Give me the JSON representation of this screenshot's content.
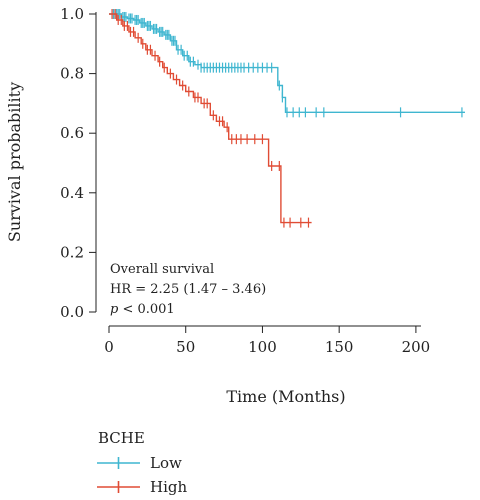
{
  "chart_data": {
    "type": "line",
    "subtype": "kaplan-meier",
    "ylabel": "Survival probability",
    "xlabel": "Time (Months)",
    "xlim": [
      0,
      232
    ],
    "ylim": [
      0.0,
      1.0
    ],
    "x_ticks": [
      0,
      50,
      100,
      150,
      200
    ],
    "y_ticks": [
      0.0,
      0.2,
      0.4,
      0.6,
      0.8,
      1.0
    ],
    "x_tick_labels": [
      "0",
      "50",
      "100",
      "150",
      "200"
    ],
    "y_tick_labels": [
      "0.0",
      "0.2",
      "0.4",
      "0.6",
      "0.8",
      "1.0"
    ],
    "grid": false,
    "annotation": {
      "line1": "Overall survival",
      "line2": "HR = 2.25 (1.47 – 3.46)",
      "p_symbol": "p",
      "p_rest": " < 0.001"
    },
    "legend": {
      "title": "BCHE",
      "position": "bottom-left"
    },
    "series": [
      {
        "name": "Low",
        "color": "#3fb6d0",
        "steps": [
          [
            0,
            1.0
          ],
          [
            8,
            0.99
          ],
          [
            12,
            0.985
          ],
          [
            16,
            0.98
          ],
          [
            20,
            0.97
          ],
          [
            24,
            0.96
          ],
          [
            28,
            0.95
          ],
          [
            32,
            0.94
          ],
          [
            36,
            0.93
          ],
          [
            40,
            0.91
          ],
          [
            44,
            0.88
          ],
          [
            48,
            0.86
          ],
          [
            52,
            0.84
          ],
          [
            56,
            0.83
          ],
          [
            60,
            0.82
          ],
          [
            110,
            0.76
          ],
          [
            113,
            0.72
          ],
          [
            115,
            0.67
          ],
          [
            232,
            0.67
          ]
        ],
        "censor_x": [
          2,
          3,
          4,
          5,
          6,
          7,
          9,
          10,
          11,
          13,
          14,
          15,
          17,
          18,
          19,
          21,
          22,
          23,
          25,
          26,
          27,
          29,
          30,
          31,
          33,
          34,
          35,
          37,
          38,
          39,
          41,
          42,
          43,
          45,
          47,
          49,
          51,
          53,
          55,
          58,
          60,
          62,
          64,
          66,
          68,
          70,
          72,
          74,
          76,
          78,
          80,
          82,
          84,
          86,
          88,
          91,
          94,
          97,
          100,
          103,
          106,
          111,
          113,
          116,
          120,
          124,
          128,
          135,
          140,
          190,
          230
        ]
      },
      {
        "name": "High",
        "color": "#e04c35",
        "steps": [
          [
            0,
            1.0
          ],
          [
            5,
            0.98
          ],
          [
            9,
            0.96
          ],
          [
            13,
            0.94
          ],
          [
            17,
            0.92
          ],
          [
            21,
            0.9
          ],
          [
            24,
            0.88
          ],
          [
            28,
            0.86
          ],
          [
            32,
            0.84
          ],
          [
            35,
            0.82
          ],
          [
            38,
            0.8
          ],
          [
            42,
            0.78
          ],
          [
            46,
            0.76
          ],
          [
            50,
            0.74
          ],
          [
            55,
            0.72
          ],
          [
            60,
            0.7
          ],
          [
            66,
            0.66
          ],
          [
            70,
            0.64
          ],
          [
            75,
            0.62
          ],
          [
            78,
            0.58
          ],
          [
            104,
            0.49
          ],
          [
            112,
            0.3
          ],
          [
            132,
            0.3
          ]
        ],
        "censor_x": [
          2,
          4,
          6,
          8,
          10,
          12,
          14,
          16,
          19,
          22,
          25,
          27,
          30,
          33,
          36,
          40,
          44,
          48,
          52,
          56,
          58,
          62,
          64,
          68,
          72,
          74,
          77,
          80,
          83,
          86,
          90,
          95,
          100,
          106,
          111,
          114,
          118,
          125,
          130
        ]
      }
    ]
  }
}
